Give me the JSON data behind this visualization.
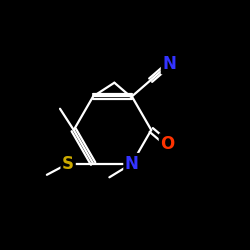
{
  "background_color": "#000000",
  "bond_color": "#ffffff",
  "atom_colors": {
    "N": "#3333ff",
    "O": "#ff3300",
    "S": "#ccaa00",
    "C": "#ffffff"
  },
  "figsize": [
    2.5,
    2.5
  ],
  "dpi": 100,
  "lw": 1.6,
  "fs": 12
}
